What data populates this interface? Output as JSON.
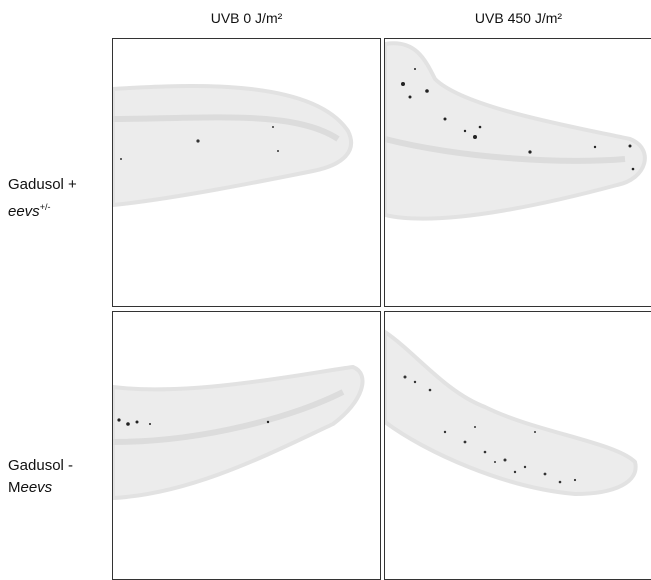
{
  "columns": [
    "UVB 0 J/m²",
    "UVB 450 J/m²"
  ],
  "rows": [
    {
      "line1": "Gadusol +",
      "line2": "eevs",
      "line2_sup": "+/-"
    },
    {
      "line1": "Gadusol -",
      "line2_prefix": "M",
      "line2": "eevs"
    }
  ]
}
